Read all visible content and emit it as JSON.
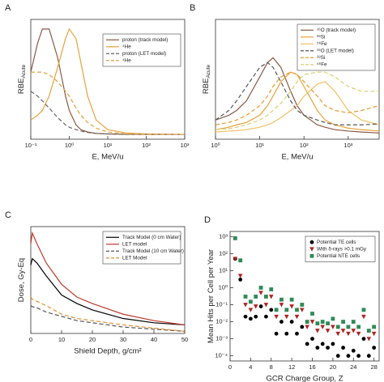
{
  "chart_data": [
    {
      "type": "line",
      "label": "A",
      "xlabel": "E, MeV/u",
      "ylabel": "RBE",
      "ylabel_sub": "Acute",
      "xlog": true,
      "xlim": [
        0.1,
        1000
      ],
      "xticks": [
        {
          "value": 0.1,
          "label": "10⁻¹"
        },
        {
          "value": 1,
          "label": "10⁰"
        },
        {
          "value": 10,
          "label": "10¹"
        },
        {
          "value": 100,
          "label": "10²"
        },
        {
          "value": 1000,
          "label": "10³"
        }
      ],
      "ylim": [
        0,
        25
      ],
      "legend": "upper right",
      "x": [
        0.1,
        0.15,
        0.2,
        0.3,
        0.5,
        0.8,
        1,
        1.5,
        2,
        3,
        5,
        10,
        30,
        100,
        1000
      ],
      "series": [
        {
          "name": "proton (track model)",
          "color": "#8b5a44",
          "dash": false,
          "values": [
            14,
            20,
            23,
            23,
            17,
            9,
            6,
            3,
            2,
            1.5,
            1.2,
            1.1,
            1,
            1,
            1
          ]
        },
        {
          "name": "⁴He",
          "color": "#e8a33a",
          "dash": false,
          "values": [
            4,
            5,
            6,
            9,
            15,
            21,
            23,
            21,
            16,
            9,
            4,
            2,
            1.3,
            1.1,
            1
          ]
        },
        {
          "name": "proton (LET model)",
          "color": "#666666",
          "dash": true,
          "values": [
            10,
            9,
            8,
            6.5,
            4.5,
            3,
            2.5,
            2,
            1.7,
            1.4,
            1.2,
            1.1,
            1,
            1,
            1
          ]
        },
        {
          "name": "⁴He",
          "color": "#e0a040",
          "dash": true,
          "values": [
            14,
            14,
            14,
            13.5,
            12,
            10,
            9,
            6.5,
            5,
            3.5,
            2.3,
            1.5,
            1.1,
            1,
            1
          ]
        }
      ]
    },
    {
      "type": "line",
      "label": "B",
      "xlabel": "E, MeV/u",
      "ylabel": "RBE",
      "ylabel_sub": "Acute",
      "xlog": true,
      "xlim": [
        1,
        5000
      ],
      "xticks": [
        {
          "value": 1,
          "label": "10⁰"
        },
        {
          "value": 10,
          "label": "10¹"
        },
        {
          "value": 100,
          "label": "10²"
        },
        {
          "value": 1000,
          "label": "10³"
        }
      ],
      "ylim": [
        0,
        25
      ],
      "legend": "upper right",
      "x": [
        1,
        2,
        3,
        5,
        10,
        15,
        20,
        30,
        50,
        70,
        100,
        200,
        300,
        500,
        1000,
        2000,
        5000
      ],
      "series": [
        {
          "name": "¹⁶O (track model)",
          "color": "#8b5a44",
          "dash": false,
          "values": [
            4,
            5,
            6,
            8,
            13,
            16,
            17,
            15,
            10,
            7,
            5,
            3,
            2.5,
            2,
            1.7,
            1.5,
            1.3
          ]
        },
        {
          "name": "²⁸Si",
          "color": "#e8a33a",
          "dash": false,
          "values": [
            2,
            2.5,
            3,
            3.5,
            5,
            7,
            9,
            12,
            14,
            13.5,
            11,
            6,
            4,
            3,
            2.3,
            2,
            1.7
          ]
        },
        {
          "name": "⁵⁶Fe",
          "color": "#f0c060",
          "dash": false,
          "values": [
            1.5,
            1.7,
            1.8,
            2,
            2.5,
            3,
            3.5,
            4.5,
            6,
            7,
            9,
            11.5,
            12,
            10,
            6,
            4,
            3
          ]
        },
        {
          "name": "¹⁶O (LET model)",
          "color": "#555555",
          "dash": true,
          "values": [
            4,
            6,
            8,
            11,
            15,
            16,
            15,
            12,
            8,
            6,
            5,
            4,
            3.5,
            3,
            3,
            3,
            3.2
          ]
        },
        {
          "name": "²⁸Si",
          "color": "#e89a30",
          "dash": true,
          "values": [
            3,
            3.5,
            4,
            5,
            7,
            9,
            11,
            13,
            14,
            13.5,
            12,
            9,
            7,
            6,
            5.5,
            6,
            7
          ]
        },
        {
          "name": "⁵⁶Fe",
          "color": "#d8d070",
          "dash": true,
          "values": [
            2,
            2.2,
            2.5,
            3,
            4,
            5,
            6,
            7.5,
            10,
            12,
            13.5,
            14,
            14,
            13,
            11,
            10,
            10
          ]
        }
      ]
    },
    {
      "type": "line",
      "label": "C",
      "xlabel": "Shield Depth, g/cm²",
      "ylabel": "Dose, Gy-Eq",
      "xlog": false,
      "xlim": [
        0,
        50
      ],
      "xticks": [
        0,
        10,
        20,
        30,
        40,
        50
      ],
      "ylim": [
        30,
        80
      ],
      "legend": "upper right",
      "x": [
        0,
        0.5,
        2,
        5,
        10,
        15,
        20,
        30,
        40,
        50
      ],
      "series": [
        {
          "name": "Track Model (0 cm Water)",
          "color": "#000000",
          "dash": false,
          "values": [
            62,
            65,
            63,
            57,
            48,
            44,
            41,
            37,
            35,
            34
          ]
        },
        {
          "name": "LET model",
          "color": "#c0392b",
          "dash": false,
          "values": [
            72,
            77,
            72,
            63,
            53,
            47,
            44,
            39,
            36,
            34
          ]
        },
        {
          "name": "Track Model (10 cm Water)",
          "color": "#555555",
          "dash": true,
          "values": [
            43,
            42.5,
            42,
            40,
            38,
            36,
            35,
            33,
            32,
            31
          ]
        },
        {
          "name": "LET Model",
          "color": "#e09030",
          "dash": true,
          "values": [
            47,
            46,
            45,
            43,
            39,
            37,
            36,
            34,
            32.5,
            31
          ]
        }
      ]
    },
    {
      "type": "scatter",
      "label": "D",
      "xlabel": "GCR Charge Group, Z",
      "ylabel": "Mean Hits per Cell per Year",
      "xlog": false,
      "xlim": [
        0,
        29
      ],
      "xticks": [
        0,
        4,
        8,
        12,
        16,
        20,
        24,
        28
      ],
      "ylog": true,
      "ylim": [
        5e-05,
        2000
      ],
      "yticks": [
        {
          "value": 0.0001,
          "label": "10⁻⁴"
        },
        {
          "value": 0.001,
          "label": "10⁻³"
        },
        {
          "value": 0.01,
          "label": "10⁻²"
        },
        {
          "value": 0.1,
          "label": "10⁻¹"
        },
        {
          "value": 1,
          "label": "10⁰"
        },
        {
          "value": 10,
          "label": "10¹"
        },
        {
          "value": 100,
          "label": "10²"
        },
        {
          "value": 1000,
          "label": "10³"
        }
      ],
      "legend": "upper right",
      "x": [
        1,
        2,
        3,
        4,
        5,
        6,
        7,
        8,
        9,
        10,
        11,
        12,
        13,
        14,
        15,
        16,
        17,
        18,
        19,
        20,
        21,
        22,
        23,
        24,
        25,
        26,
        27,
        28
      ],
      "series": [
        {
          "name": "Potential TE cells",
          "color": "#000000",
          "marker": "circle",
          "values": [
            50,
            3,
            0.02,
            0.015,
            0.02,
            0.08,
            0.02,
            0.05,
            0.002,
            0.01,
            0.002,
            0.01,
            0.002,
            0.005,
            0.0005,
            0.001,
            0.0003,
            0.0005,
            0.0003,
            0.0005,
            0.0001,
            0.0003,
            0.0001,
            0.0002,
            0.0001,
            0.001,
            0.0001,
            0.0003
          ]
        },
        {
          "name": "With δ-rays >0.1 mGy",
          "color": "#b22222",
          "marker": "triangle-down",
          "values": [
            50,
            5,
            0.1,
            0.05,
            0.08,
            0.5,
            0.1,
            0.3,
            0.02,
            0.1,
            0.02,
            0.08,
            0.02,
            0.05,
            0.005,
            0.01,
            0.003,
            0.005,
            0.003,
            0.005,
            0.002,
            0.003,
            0.002,
            0.003,
            0.002,
            0.02,
            0.001,
            0.002
          ]
        },
        {
          "name": "Potential NTE cells",
          "color": "#2e8b57",
          "marker": "square",
          "values": [
            800,
            40,
            0.3,
            0.15,
            0.3,
            1,
            0.3,
            0.8,
            0.05,
            0.2,
            0.05,
            0.2,
            0.05,
            0.1,
            0.01,
            0.03,
            0.008,
            0.01,
            0.008,
            0.015,
            0.005,
            0.01,
            0.005,
            0.01,
            0.005,
            0.05,
            0.003,
            0.005
          ]
        }
      ]
    }
  ]
}
